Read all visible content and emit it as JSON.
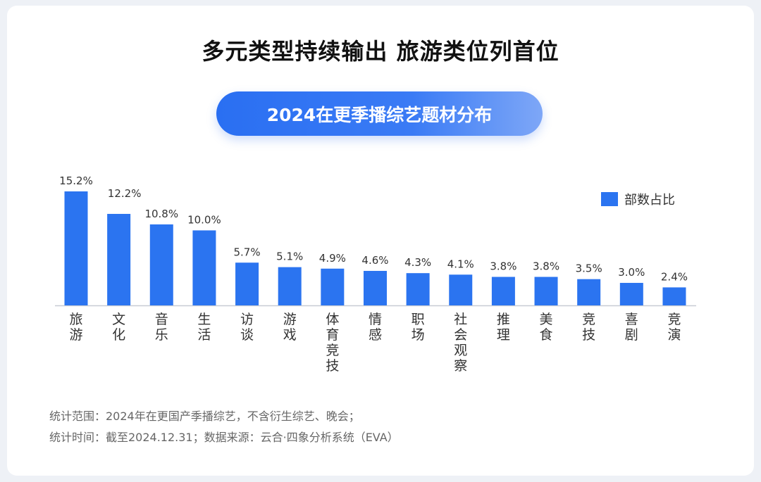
{
  "title": "多元类型持续输出 旅游类位列首位",
  "chart_data": {
    "type": "bar",
    "title": "2024在更季播综艺题材分布",
    "categories": [
      "旅游",
      "文化",
      "音乐",
      "生活",
      "访谈",
      "游戏",
      "体育竞技",
      "情感",
      "职场",
      "社会观察",
      "推理",
      "美食",
      "竞技",
      "喜剧",
      "竞演"
    ],
    "series": [
      {
        "name": "部数占比",
        "values": [
          15.2,
          12.2,
          10.8,
          10.0,
          5.7,
          5.1,
          4.9,
          4.6,
          4.3,
          4.1,
          3.8,
          3.8,
          3.5,
          3.0,
          2.4
        ]
      }
    ],
    "value_labels": [
      "15.2%",
      "12.2%",
      "10.8%",
      "10.0%",
      "5.7%",
      "5.1%",
      "4.9%",
      "4.6%",
      "4.3%",
      "4.1%",
      "3.8%",
      "3.8%",
      "3.5%",
      "3.0%",
      "2.4%"
    ],
    "unit": "%",
    "ylim": [
      0,
      15.2
    ],
    "grid": false,
    "legend_position": "top-right",
    "bar_color": "#2b74f0"
  },
  "notes": [
    "统计范围：2024年在更国产季播综艺，不含衍生综艺、晚会；",
    "统计时间：截至2024.12.31；数据来源：云合·四象分析系统（EVA）"
  ]
}
